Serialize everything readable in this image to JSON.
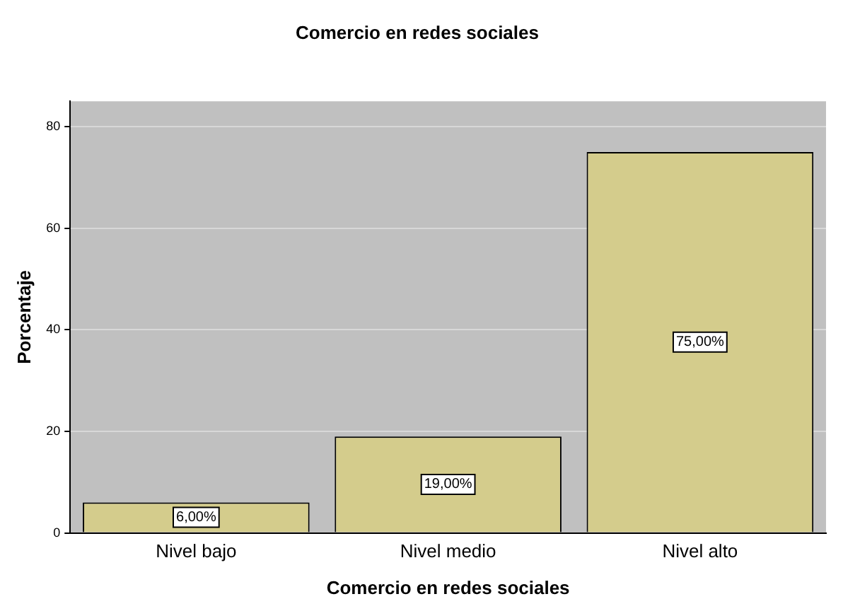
{
  "chart_data": {
    "type": "bar",
    "title": "Comercio en redes sociales",
    "xlabel": "Comercio en redes sociales",
    "ylabel": "Porcentaje",
    "categories": [
      "Nivel bajo",
      "Nivel medio",
      "Nivel alto"
    ],
    "values": [
      6,
      19,
      75
    ],
    "value_labels": [
      "6,00%",
      "19,00%",
      "75,00%"
    ],
    "color": "#d4cc8c",
    "ylim": [
      0,
      85
    ],
    "yticks": [
      0,
      20,
      40,
      60,
      80
    ],
    "grid": "y"
  }
}
